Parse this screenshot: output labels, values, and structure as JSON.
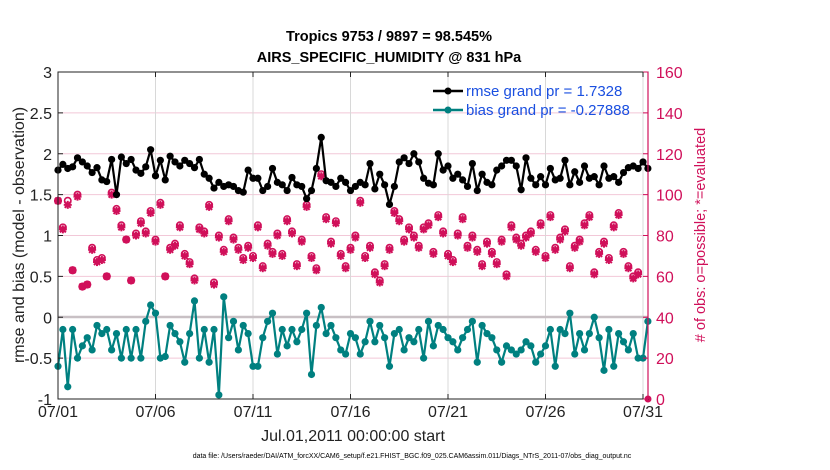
{
  "chart_data": {
    "type": "line",
    "title": [
      "Tropics 9753 / 9897 = 98.545%",
      "AIRS_SPECIFIC_HUMIDITY @ 831 hPa"
    ],
    "xlabel": "Jul.01,2011 00:00:00 start",
    "ylabel": "rmse and bias (model - observation)",
    "ylabel_right": "# of obs: o=possible; *=evaluated",
    "xlim": [
      0,
      30.8
    ],
    "ylim": [
      -1,
      3
    ],
    "ylim_right": [
      0,
      160
    ],
    "x_unit": "days since 07/01 00:00",
    "x_ticks": [
      0,
      5,
      10,
      15,
      20,
      25,
      30
    ],
    "x_tick_labels": [
      "07/01",
      "07/06",
      "07/11",
      "07/16",
      "07/21",
      "07/26",
      "07/31"
    ],
    "y_ticks": [
      -1,
      -0.5,
      0,
      0.5,
      1,
      1.5,
      2,
      2.5,
      3
    ],
    "y_tick_labels": [
      "-1",
      "-0.5",
      "0",
      "0.5",
      "1",
      "1.5",
      "2",
      "2.5",
      "3"
    ],
    "y_ticks_right": [
      0,
      20,
      40,
      60,
      80,
      100,
      120,
      140,
      160
    ],
    "y_tick_labels_right": [
      "0",
      "20",
      "40",
      "60",
      "80",
      "100",
      "120",
      "140",
      "160"
    ],
    "grid": true,
    "zero_line": 0,
    "legend_position": "top-right",
    "x_step_days": 0.25,
    "series": [
      {
        "name": "rmse grand pr = 1.7328",
        "color": "#000000",
        "axis": "left",
        "values": [
          1.8,
          1.87,
          1.82,
          1.84,
          1.95,
          1.9,
          1.85,
          1.77,
          1.83,
          1.68,
          1.66,
          1.93,
          1.5,
          1.96,
          1.88,
          1.93,
          1.8,
          1.76,
          1.84,
          2.05,
          1.73,
          1.92,
          1.68,
          1.97,
          1.9,
          1.85,
          1.92,
          1.88,
          1.83,
          1.93,
          1.75,
          1.7,
          1.58,
          1.65,
          1.6,
          1.62,
          1.6,
          1.55,
          1.53,
          1.8,
          1.7,
          1.7,
          1.55,
          1.6,
          1.82,
          1.65,
          1.62,
          1.55,
          1.71,
          1.62,
          1.6,
          1.45,
          1.55,
          1.82,
          2.2,
          1.67,
          1.65,
          1.6,
          1.7,
          1.65,
          1.55,
          1.6,
          1.65,
          1.62,
          1.88,
          1.57,
          1.75,
          1.62,
          1.38,
          1.6,
          1.9,
          1.95,
          1.88,
          2.0,
          1.9,
          1.7,
          1.64,
          1.62,
          2.0,
          1.8,
          1.85,
          1.7,
          1.75,
          1.68,
          1.6,
          1.88,
          1.55,
          1.75,
          1.65,
          1.62,
          1.8,
          1.85,
          1.92,
          1.92,
          1.85,
          1.56,
          1.95,
          1.7,
          1.62,
          1.72,
          1.62,
          1.82,
          1.68,
          1.7,
          1.92,
          1.62,
          1.78,
          1.65,
          1.85,
          1.7,
          1.72,
          1.62,
          1.85,
          1.7,
          1.72,
          1.65,
          1.77,
          1.83,
          1.85,
          1.82,
          1.9,
          1.82,
          2.0,
          1.78
        ]
      },
      {
        "name": "bias grand pr = -0.27888",
        "color": "#008080",
        "axis": "left",
        "values": [
          -0.6,
          -0.15,
          -0.85,
          -0.15,
          -0.5,
          -0.35,
          -0.25,
          -0.4,
          -0.1,
          -0.2,
          -0.15,
          -0.4,
          -0.2,
          -0.5,
          -0.15,
          -0.5,
          -0.15,
          -0.5,
          -0.05,
          0.15,
          0.05,
          -0.5,
          -0.48,
          -0.1,
          -0.2,
          -0.3,
          -0.55,
          -0.2,
          0.2,
          -0.5,
          -0.15,
          -0.55,
          -0.15,
          -0.95,
          0.25,
          -0.25,
          -0.05,
          -0.4,
          -0.1,
          -0.2,
          -0.6,
          -0.6,
          -0.25,
          -0.05,
          0.05,
          -0.45,
          -0.15,
          -0.35,
          -0.15,
          -0.3,
          -0.15,
          0.05,
          -0.7,
          -0.1,
          0.12,
          -0.2,
          -0.1,
          -0.25,
          -0.4,
          -0.45,
          -0.2,
          -0.25,
          -0.45,
          -0.3,
          -0.05,
          -0.3,
          -0.1,
          -0.25,
          -0.6,
          -0.2,
          -0.15,
          -0.4,
          -0.25,
          -0.3,
          -0.15,
          -0.5,
          -0.05,
          -0.35,
          -0.1,
          -0.15,
          -0.25,
          -0.3,
          -0.4,
          -0.25,
          -0.15,
          -0.05,
          -0.55,
          -0.1,
          -0.2,
          -0.25,
          -0.4,
          -0.55,
          -0.35,
          -0.4,
          -0.45,
          -0.4,
          -0.3,
          -0.35,
          -0.55,
          -0.45,
          -0.35,
          -0.15,
          -0.6,
          -0.15,
          -0.2,
          0.05,
          -0.45,
          -0.2,
          -0.4,
          -0.2,
          0.0,
          -0.25,
          -0.65,
          -0.15,
          -0.6,
          -0.2,
          -0.3,
          -0.4,
          -0.2,
          -0.5,
          -0.5,
          -0.05
        ]
      },
      {
        "name": "obs possible (o)",
        "color": "#d0105a",
        "axis": "right",
        "marker": "o",
        "values": [
          97,
          84,
          97,
          63,
          100,
          55,
          56,
          74,
          68,
          69,
          60,
          101,
          93,
          85,
          78,
          58,
          81,
          87,
          82,
          92,
          78,
          96,
          60,
          74,
          76,
          85,
          71,
          67,
          59,
          84,
          82,
          95,
          57,
          80,
          73,
          88,
          79,
          74,
          69,
          75,
          70,
          85,
          65,
          76,
          72,
          81,
          71,
          88,
          82,
          66,
          78,
          95,
          70,
          64,
          110,
          89,
          77,
          87,
          71,
          65,
          74,
          80,
          97,
          70,
          75,
          62,
          58,
          66,
          74,
          92,
          88,
          78,
          84,
          80,
          75,
          84,
          86,
          72,
          90,
          82,
          71,
          68,
          81,
          89,
          75,
          80,
          73,
          66,
          77,
          72,
          67,
          78,
          61,
          85,
          79,
          76,
          80,
          82,
          73,
          86,
          70,
          90,
          74,
          79,
          83,
          65,
          75,
          78,
          86,
          90,
          62,
          72,
          77,
          69,
          85,
          91,
          72,
          65,
          60,
          62
        ]
      },
      {
        "name": "obs evaluated (*)",
        "color": "#d0105a",
        "axis": "right",
        "marker": "*",
        "values": [
          97,
          83,
          95,
          63,
          99,
          55,
          56,
          73,
          67,
          68,
          60,
          100,
          92,
          84,
          78,
          58,
          80,
          86,
          81,
          91,
          77,
          95,
          60,
          73,
          75,
          84,
          70,
          66,
          58,
          83,
          81,
          94,
          56,
          79,
          72,
          87,
          78,
          73,
          68,
          74,
          69,
          84,
          64,
          75,
          71,
          80,
          70,
          87,
          81,
          65,
          77,
          94,
          69,
          63,
          109,
          88,
          76,
          86,
          70,
          64,
          73,
          79,
          96,
          69,
          74,
          61,
          57,
          65,
          73,
          91,
          87,
          77,
          83,
          79,
          74,
          83,
          85,
          71,
          89,
          81,
          70,
          67,
          80,
          88,
          74,
          79,
          72,
          65,
          76,
          71,
          66,
          77,
          60,
          84,
          78,
          75,
          79,
          81,
          72,
          85,
          69,
          89,
          73,
          78,
          82,
          64,
          74,
          77,
          85,
          89,
          61,
          71,
          76,
          68,
          84,
          90,
          71,
          64,
          59,
          61
        ]
      }
    ]
  },
  "footer": "data file: /Users/raeder/DAI/ATM_forcXX/CAM6_setup/f.e21.FHIST_BGC.f09_025.CAM6assim.011/Diags_NTrS_2011-07/obs_diag_output.nc"
}
